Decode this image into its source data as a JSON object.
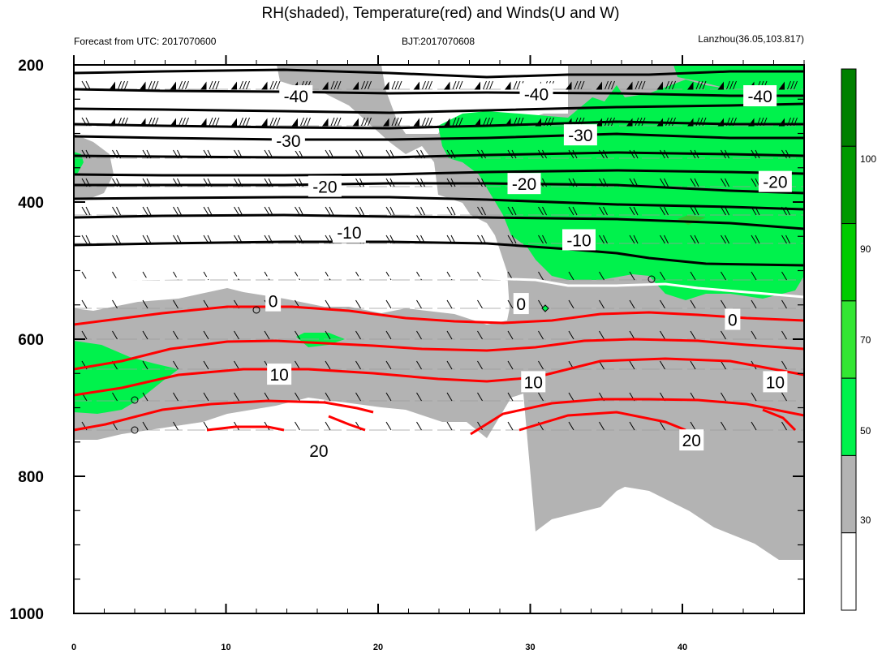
{
  "chart_data": {
    "type": "contour",
    "title": "RH(shaded), Temperature(red) and Winds(U and W)",
    "subtitle_left": "Forecast from UTC: 2017070600",
    "subtitle_center": "BJT:2017070608",
    "subtitle_right": "Lanzhou(36.05,103.817)",
    "x_ticks": [
      0,
      10,
      20,
      30,
      40
    ],
    "xlim": [
      0,
      48
    ],
    "y_ticks": [
      200,
      400,
      600,
      800,
      1000
    ],
    "ylim": [
      200,
      1000
    ],
    "y_inverted": true,
    "colorbar": {
      "ticks": [
        30,
        50,
        70,
        90,
        100
      ],
      "colors": [
        "#ffffff",
        "#b3b3b3",
        "#00f24c",
        "#33e633",
        "#00cc00",
        "#009900",
        "#008000"
      ]
    },
    "temperature_contours": [
      {
        "label": "-40",
        "p": 243,
        "color": "#000000"
      },
      {
        "label": "-30",
        "p": 305,
        "color": "#000000"
      },
      {
        "label": "-20",
        "p": 375,
        "color": "#000000"
      },
      {
        "label": "-10",
        "p": 445,
        "color": "#000000"
      },
      {
        "label": "0",
        "p": 553,
        "color": "#ffffff"
      },
      {
        "label": "10",
        "p": 660,
        "color": "#ff0000"
      },
      {
        "label": "20",
        "p": 755,
        "color": "#ff0000"
      }
    ],
    "contour_labels": [
      {
        "text": "-40",
        "x": 14.6,
        "p": 245
      },
      {
        "text": "-40",
        "x": 30.4,
        "p": 242
      },
      {
        "text": "-40",
        "x": 45.1,
        "p": 245
      },
      {
        "text": "-30",
        "x": 14.1,
        "p": 310
      },
      {
        "text": "-30",
        "x": 33.3,
        "p": 302
      },
      {
        "text": "-20",
        "x": 16.5,
        "p": 377
      },
      {
        "text": "-20",
        "x": 29.6,
        "p": 373
      },
      {
        "text": "-20",
        "x": 46.1,
        "p": 370
      },
      {
        "text": "-10",
        "x": 18.1,
        "p": 444
      },
      {
        "text": "-10",
        "x": 33.2,
        "p": 455
      },
      {
        "text": "0",
        "x": 13.1,
        "p": 544
      },
      {
        "text": "0",
        "x": 29.4,
        "p": 548
      },
      {
        "text": "0",
        "x": 43.3,
        "p": 571
      },
      {
        "text": "10",
        "x": 13.5,
        "p": 651
      },
      {
        "text": "10",
        "x": 30.2,
        "p": 662
      },
      {
        "text": "10",
        "x": 46.1,
        "p": 662
      },
      {
        "text": "20",
        "x": 16.1,
        "p": 762
      },
      {
        "text": "20",
        "x": 40.6,
        "p": 747
      }
    ]
  }
}
